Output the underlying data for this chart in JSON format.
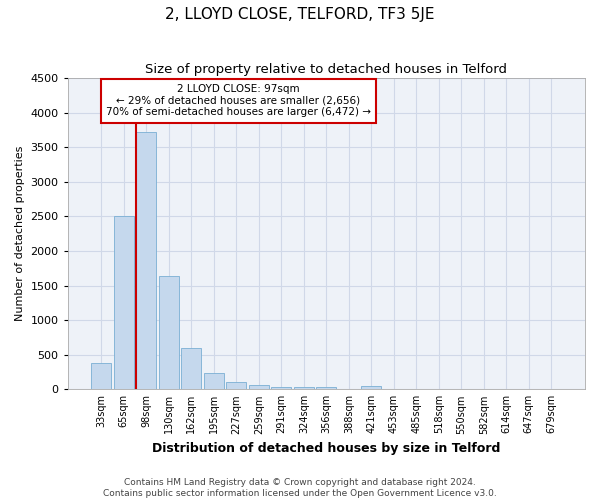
{
  "title1": "2, LLOYD CLOSE, TELFORD, TF3 5JE",
  "title2": "Size of property relative to detached houses in Telford",
  "xlabel": "Distribution of detached houses by size in Telford",
  "ylabel": "Number of detached properties",
  "categories": [
    "33sqm",
    "65sqm",
    "98sqm",
    "130sqm",
    "162sqm",
    "195sqm",
    "227sqm",
    "259sqm",
    "291sqm",
    "324sqm",
    "356sqm",
    "388sqm",
    "421sqm",
    "453sqm",
    "485sqm",
    "518sqm",
    "550sqm",
    "582sqm",
    "614sqm",
    "647sqm",
    "679sqm"
  ],
  "values": [
    375,
    2500,
    3720,
    1640,
    600,
    230,
    110,
    65,
    40,
    35,
    30,
    0,
    55,
    0,
    0,
    0,
    0,
    0,
    0,
    0,
    0
  ],
  "bar_color": "#c5d8ed",
  "bar_edgecolor": "#7aafd4",
  "ylim": [
    0,
    4500
  ],
  "yticks": [
    0,
    500,
    1000,
    1500,
    2000,
    2500,
    3000,
    3500,
    4000,
    4500
  ],
  "redline_index": 2,
  "annotation_line1": "2 LLOYD CLOSE: 97sqm",
  "annotation_line2": "← 29% of detached houses are smaller (2,656)",
  "annotation_line3": "70% of semi-detached houses are larger (6,472) →",
  "annotation_box_color": "#cc0000",
  "footer1": "Contains HM Land Registry data © Crown copyright and database right 2024.",
  "footer2": "Contains public sector information licensed under the Open Government Licence v3.0.",
  "bg_color": "#eef2f8",
  "grid_color": "#d0d8e8",
  "title1_fontsize": 11,
  "title2_fontsize": 9.5,
  "xlabel_fontsize": 9,
  "ylabel_fontsize": 8,
  "footer_fontsize": 6.5
}
